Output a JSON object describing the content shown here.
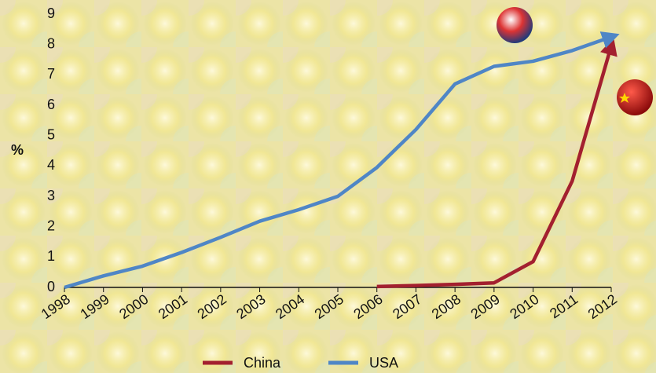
{
  "chart_data": {
    "type": "line",
    "y_label": "%",
    "categories": [
      "1998",
      "1999",
      "2000",
      "2001",
      "2002",
      "2003",
      "2004",
      "2005",
      "2006",
      "2007",
      "2008",
      "2009",
      "2010",
      "2011",
      "2012"
    ],
    "series": [
      {
        "name": "China",
        "color": "#a3202f",
        "values": [
          null,
          null,
          null,
          null,
          null,
          null,
          null,
          null,
          0.03,
          0.06,
          0.1,
          0.15,
          0.85,
          3.5,
          7.95
        ]
      },
      {
        "name": "USA",
        "color": "#4f86c6",
        "values": [
          0,
          0.38,
          0.7,
          1.15,
          1.65,
          2.18,
          2.56,
          3.0,
          3.95,
          5.2,
          6.7,
          7.28,
          7.45,
          7.8,
          8.25
        ]
      }
    ],
    "ylim": [
      0,
      9
    ],
    "yticks": [
      0,
      1,
      2,
      3,
      4,
      5,
      6,
      7,
      8,
      9
    ]
  }
}
